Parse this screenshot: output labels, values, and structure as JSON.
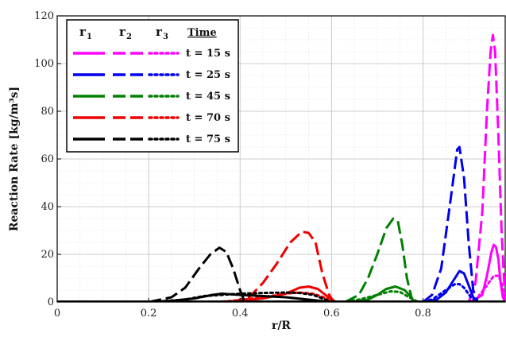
{
  "chart_data": {
    "type": "line",
    "xlabel": "r/R",
    "ylabel": "Reaction Rate [kg/m³s]",
    "xlim": [
      0,
      0.98
    ],
    "ylim": [
      0,
      120
    ],
    "xticks": [
      0,
      0.2,
      0.4,
      0.6,
      0.8
    ],
    "yticks": [
      0,
      20,
      40,
      60,
      80,
      100,
      120
    ],
    "grid": true,
    "legend_position": "top-left",
    "legend_headers": {
      "r1": "r",
      "r1_sub": "1",
      "r2": "r",
      "r2_sub": "2",
      "r3": "r",
      "r3_sub": "3",
      "time": "Time"
    },
    "series": [
      {
        "time": "t = 15 s",
        "color": "#ff00ff",
        "r1": [
          [
            0.89,
            0
          ],
          [
            0.91,
            0.5
          ],
          [
            0.93,
            3
          ],
          [
            0.94,
            11
          ],
          [
            0.95,
            21
          ],
          [
            0.955,
            24
          ],
          [
            0.96,
            23
          ],
          [
            0.965,
            18
          ],
          [
            0.97,
            8
          ],
          [
            0.975,
            2
          ],
          [
            0.98,
            0
          ]
        ],
        "r2": [
          [
            0.9,
            0
          ],
          [
            0.915,
            8
          ],
          [
            0.93,
            38
          ],
          [
            0.94,
            80
          ],
          [
            0.948,
            105
          ],
          [
            0.953,
            112
          ],
          [
            0.958,
            105
          ],
          [
            0.965,
            70
          ],
          [
            0.972,
            30
          ],
          [
            0.978,
            8
          ],
          [
            0.982,
            0
          ]
        ],
        "r3": [
          [
            0.9,
            0
          ],
          [
            0.92,
            2
          ],
          [
            0.94,
            7
          ],
          [
            0.955,
            11
          ],
          [
            0.965,
            11
          ],
          [
            0.972,
            8
          ],
          [
            0.978,
            3
          ],
          [
            0.982,
            0
          ]
        ]
      },
      {
        "time": "t = 25 s",
        "color": "#0000ee",
        "r1": [
          [
            0.8,
            0
          ],
          [
            0.83,
            1
          ],
          [
            0.85,
            4
          ],
          [
            0.87,
            10
          ],
          [
            0.88,
            13
          ],
          [
            0.89,
            12
          ],
          [
            0.9,
            7
          ],
          [
            0.91,
            2
          ],
          [
            0.92,
            0
          ]
        ],
        "r2": [
          [
            0.8,
            0
          ],
          [
            0.82,
            3
          ],
          [
            0.84,
            14
          ],
          [
            0.86,
            42
          ],
          [
            0.875,
            64
          ],
          [
            0.88,
            65
          ],
          [
            0.89,
            52
          ],
          [
            0.9,
            25
          ],
          [
            0.91,
            5
          ],
          [
            0.92,
            0
          ]
        ],
        "r3": [
          [
            0.79,
            0
          ],
          [
            0.82,
            1
          ],
          [
            0.85,
            5
          ],
          [
            0.87,
            7.5
          ],
          [
            0.88,
            7.5
          ],
          [
            0.89,
            6
          ],
          [
            0.905,
            2
          ],
          [
            0.92,
            0
          ]
        ]
      },
      {
        "time": "t = 45 s",
        "color": "#008000",
        "r1": [
          [
            0.64,
            0
          ],
          [
            0.68,
            1
          ],
          [
            0.7,
            3
          ],
          [
            0.72,
            5.5
          ],
          [
            0.74,
            6.5
          ],
          [
            0.76,
            5
          ],
          [
            0.775,
            2
          ],
          [
            0.78,
            0
          ]
        ],
        "r2": [
          [
            0.63,
            0
          ],
          [
            0.66,
            3
          ],
          [
            0.68,
            10
          ],
          [
            0.7,
            20
          ],
          [
            0.72,
            31
          ],
          [
            0.735,
            35
          ],
          [
            0.745,
            34
          ],
          [
            0.755,
            24
          ],
          [
            0.765,
            10
          ],
          [
            0.775,
            2
          ],
          [
            0.78,
            0
          ]
        ],
        "r3": [
          [
            0.62,
            0
          ],
          [
            0.66,
            1
          ],
          [
            0.7,
            3
          ],
          [
            0.73,
            4.5
          ],
          [
            0.75,
            4.2
          ],
          [
            0.77,
            2
          ],
          [
            0.79,
            0
          ]
        ]
      },
      {
        "time": "t = 70 s",
        "color": "#ee0000",
        "r1": [
          [
            0.35,
            0
          ],
          [
            0.4,
            0.5
          ],
          [
            0.45,
            1.5
          ],
          [
            0.5,
            3.5
          ],
          [
            0.53,
            6
          ],
          [
            0.55,
            6.5
          ],
          [
            0.57,
            5.5
          ],
          [
            0.59,
            2.5
          ],
          [
            0.61,
            0
          ]
        ],
        "r2": [
          [
            0.38,
            0
          ],
          [
            0.42,
            2
          ],
          [
            0.45,
            8
          ],
          [
            0.48,
            16
          ],
          [
            0.51,
            25
          ],
          [
            0.535,
            29.5
          ],
          [
            0.55,
            29
          ],
          [
            0.565,
            25
          ],
          [
            0.58,
            12
          ],
          [
            0.595,
            3
          ],
          [
            0.605,
            0
          ]
        ],
        "r3": [
          [
            0.35,
            0
          ],
          [
            0.4,
            0.8
          ],
          [
            0.45,
            2
          ],
          [
            0.5,
            3.5
          ],
          [
            0.53,
            4
          ],
          [
            0.56,
            3.5
          ],
          [
            0.59,
            1.5
          ],
          [
            0.61,
            0
          ]
        ]
      },
      {
        "time": "t = 75 s",
        "color": "#000000",
        "r1": [
          [
            0.18,
            0
          ],
          [
            0.25,
            0.5
          ],
          [
            0.3,
            1.5
          ],
          [
            0.34,
            3
          ],
          [
            0.36,
            3.5
          ],
          [
            0.4,
            3
          ],
          [
            0.45,
            2.5
          ],
          [
            0.5,
            2
          ],
          [
            0.55,
            1
          ],
          [
            0.6,
            0
          ]
        ],
        "r2": [
          [
            0.2,
            0
          ],
          [
            0.25,
            2
          ],
          [
            0.28,
            6
          ],
          [
            0.31,
            14
          ],
          [
            0.335,
            20
          ],
          [
            0.355,
            22.8
          ],
          [
            0.37,
            21
          ],
          [
            0.385,
            14
          ],
          [
            0.4,
            5
          ],
          [
            0.41,
            0
          ]
        ],
        "r3": [
          [
            0.2,
            0
          ],
          [
            0.28,
            1
          ],
          [
            0.32,
            2.5
          ],
          [
            0.36,
            3
          ],
          [
            0.4,
            3.5
          ],
          [
            0.45,
            3.8
          ],
          [
            0.5,
            4
          ],
          [
            0.53,
            3.8
          ],
          [
            0.56,
            3
          ],
          [
            0.58,
            1.5
          ],
          [
            0.6,
            0
          ]
        ]
      }
    ]
  }
}
